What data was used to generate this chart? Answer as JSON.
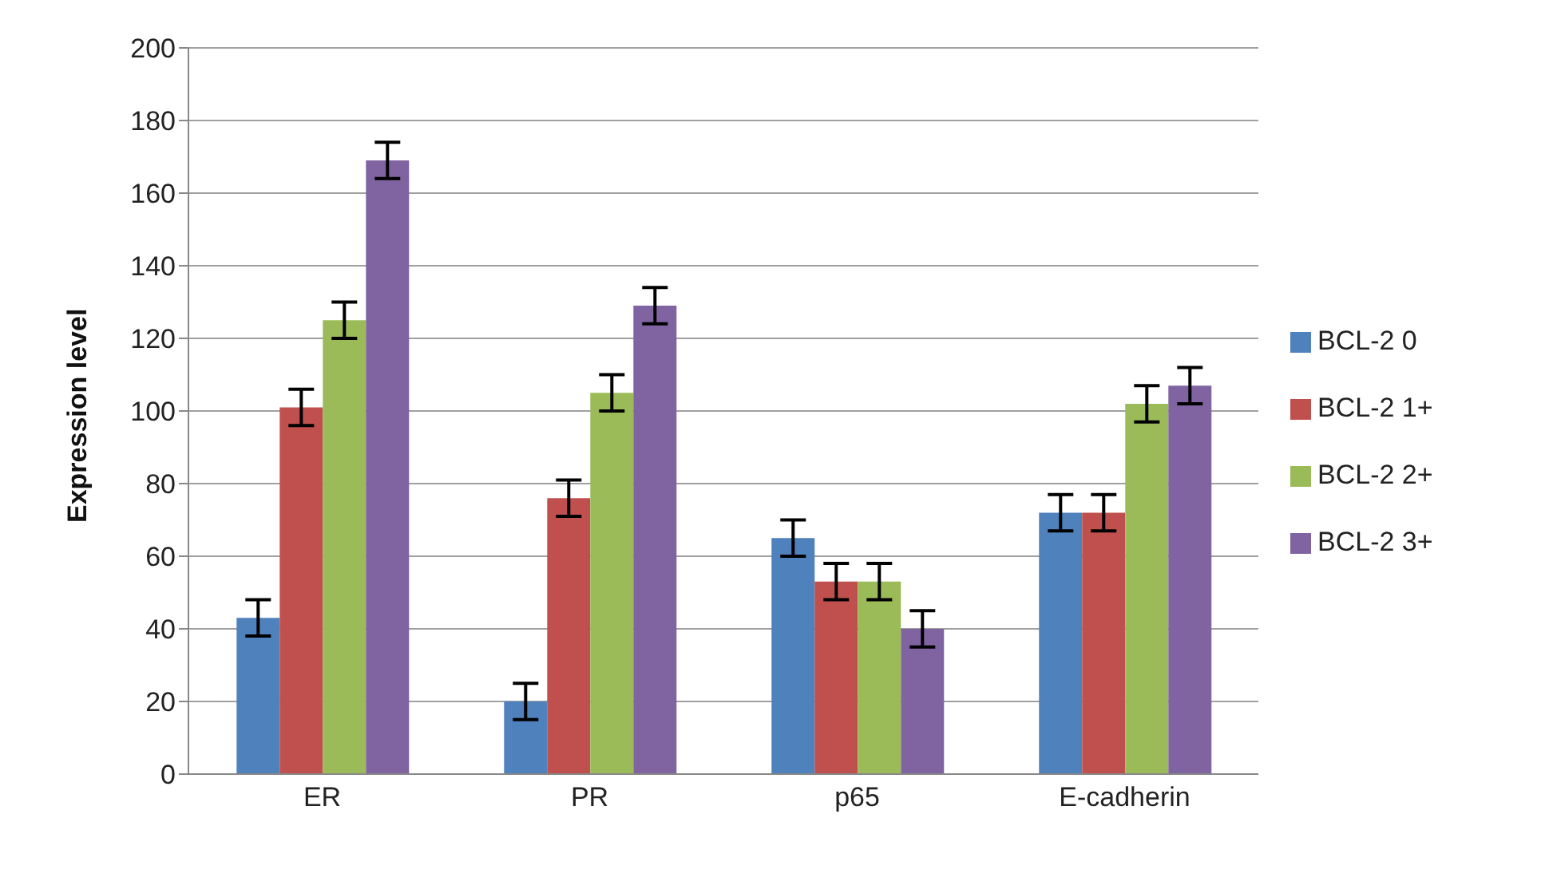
{
  "chart_data": {
    "type": "bar",
    "ylabel": "Expression level",
    "categories": [
      "ER",
      "PR",
      "p65",
      "E-cadherin"
    ],
    "series": [
      {
        "name": "BCL-2 0",
        "color": "#4f81bd",
        "values": [
          43,
          20,
          65,
          72
        ],
        "errors": [
          5,
          5,
          5,
          5
        ]
      },
      {
        "name": "BCL-2 1+",
        "color": "#c0504d",
        "values": [
          101,
          76,
          53,
          72
        ],
        "errors": [
          5,
          5,
          5,
          5
        ]
      },
      {
        "name": "BCL-2 2+",
        "color": "#9bbb59",
        "values": [
          125,
          105,
          53,
          102
        ],
        "errors": [
          5,
          5,
          5,
          5
        ]
      },
      {
        "name": "BCL-2 3+",
        "color": "#8064a2",
        "values": [
          169,
          129,
          40,
          107
        ],
        "errors": [
          5,
          5,
          5,
          5
        ]
      }
    ],
    "ylim": [
      0,
      200
    ],
    "yticks": [
      0,
      20,
      40,
      60,
      80,
      100,
      120,
      140,
      160,
      180,
      200
    ],
    "grid": "y",
    "legend": "right"
  }
}
